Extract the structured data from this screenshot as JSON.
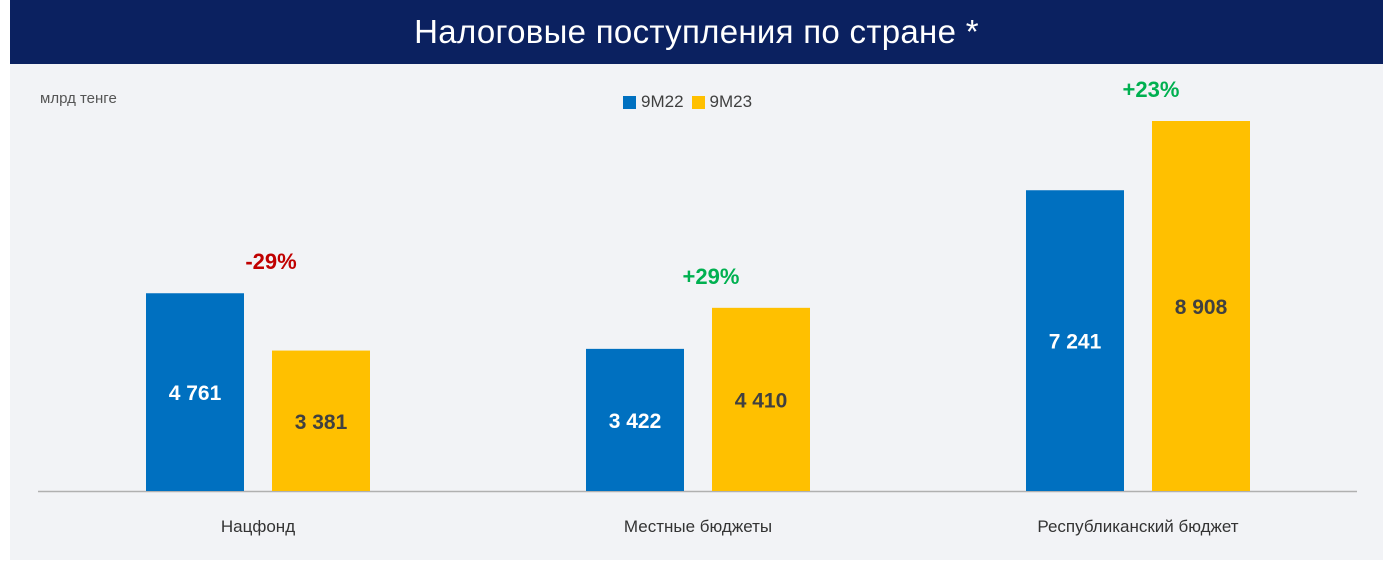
{
  "title": "Налоговые поступления по стране *",
  "unit_label": "млрд тенге",
  "colors": {
    "title_bg": "#0b2160",
    "series_1": "#0070c0",
    "series_2": "#ffc000",
    "value_label_light": "#ffffff",
    "value_label_dark": "#404040",
    "change_negative": "#c00000",
    "change_positive": "#00b050",
    "axis": "#b0b0b0"
  },
  "chart_data": {
    "type": "bar",
    "title": "Налоговые поступления по стране *",
    "ylabel": "млрд тенге",
    "categories": [
      "Нацфонд",
      "Местные бюджеты",
      "Республиканский бюджет"
    ],
    "series": [
      {
        "name": "9M22",
        "values": [
          4761,
          3422,
          7241
        ],
        "labels": [
          "4 761",
          "3 422",
          "7 241"
        ]
      },
      {
        "name": "9M23",
        "values": [
          3381,
          4410,
          8908
        ],
        "labels": [
          "3 381",
          "4 410",
          "8 908"
        ]
      }
    ],
    "changes": [
      "-29%",
      "+29%",
      "+23%"
    ],
    "legend_position": "top-center",
    "grid": false,
    "ylim": [
      0,
      8908
    ]
  }
}
